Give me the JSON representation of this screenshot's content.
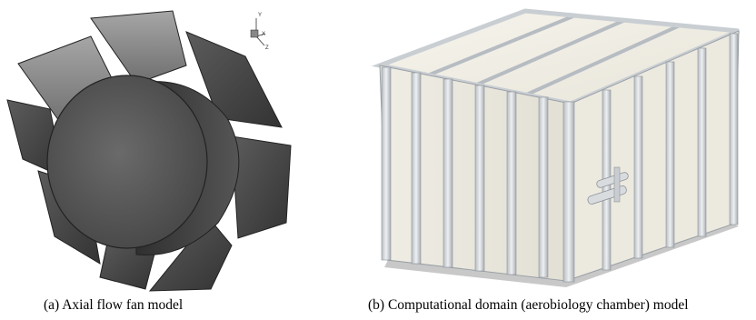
{
  "figure": {
    "panel_a": {
      "caption": "(a) Axial flow fan model",
      "axes_triad": {
        "y_label": "Y",
        "x_label": "X",
        "z_label": "Z"
      }
    },
    "panel_b": {
      "caption": "(b) Computational domain (aerobiology chamber) model"
    }
  },
  "colors": {
    "fan_dark": "#4a4a4a",
    "fan_light": "#8f8f8f",
    "chamber_frame": "#d4d8dc",
    "chamber_panel": "#f1efe6"
  }
}
